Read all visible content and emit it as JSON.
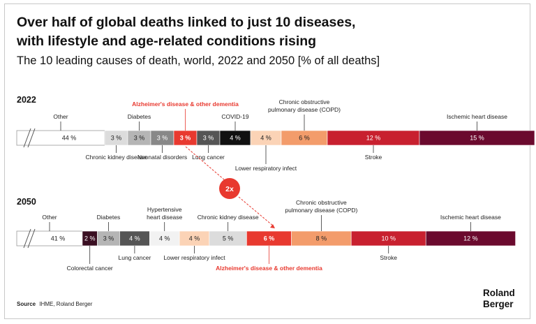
{
  "title_line1": "Over half of global deaths linked to just 10 diseases,",
  "title_line2": "with lifestyle and age-related conditions rising",
  "subtitle": "The 10 leading causes of death, world, 2022 and 2050 [% of all deaths]",
  "source_label": "Source",
  "source_text": "IHME, Roland Berger",
  "logo_line1": "Roland",
  "logo_line2": "Berger",
  "badge": "2x",
  "colors": {
    "accent": "#e8392f",
    "maroon": "#6b0a2e",
    "crimson": "#c8202f",
    "orange": "#f39c6b",
    "peach": "#fbd3b6",
    "gray_dark": "#555555",
    "gray": "#888888",
    "gray_light": "#b5b5b5",
    "gray_pale": "#dcdcdc",
    "black": "#111111"
  },
  "chart_data": [
    {
      "type": "bar",
      "stacked": true,
      "orientation": "horizontal",
      "year": "2022",
      "unit": "%",
      "segments": [
        {
          "name": "Other",
          "value": 44,
          "label": "44 %",
          "color": "#ffffff"
        },
        {
          "name": "Chronic kidney disease",
          "value": 3,
          "label": "3 %",
          "color": "#dcdcdc"
        },
        {
          "name": "Diabetes",
          "value": 3,
          "label": "3 %",
          "color": "#b5b5b5"
        },
        {
          "name": "Neonatal disorders",
          "value": 3,
          "label": "3 %",
          "color": "#888888"
        },
        {
          "name": "Alzheimer's disease & other dementia",
          "value": 3,
          "label": "3 %",
          "color": "#e8392f",
          "highlight": true
        },
        {
          "name": "Lung cancer",
          "value": 3,
          "label": "3 %",
          "color": "#555555"
        },
        {
          "name": "COVID-19",
          "value": 4,
          "label": "4 %",
          "color": "#111111"
        },
        {
          "name": "Lower respiratory infect",
          "value": 4,
          "label": "4 %",
          "color": "#fbd3b6"
        },
        {
          "name": "Chronic obstructive pulmonary disease (COPD)",
          "value": 6,
          "label": "6 %",
          "color": "#f39c6b"
        },
        {
          "name": "Stroke",
          "value": 12,
          "label": "12 %",
          "color": "#c8202f"
        },
        {
          "name": "Ischemic heart disease",
          "value": 15,
          "label": "15 %",
          "color": "#6b0a2e"
        }
      ]
    },
    {
      "type": "bar",
      "stacked": true,
      "orientation": "horizontal",
      "year": "2050",
      "unit": "%",
      "segments": [
        {
          "name": "Other",
          "value": 41,
          "label": "41 %",
          "color": "#ffffff"
        },
        {
          "name": "Colorectal cancer",
          "value": 2,
          "label": "2 %",
          "color": "#3a0f22"
        },
        {
          "name": "Diabetes",
          "value": 3,
          "label": "3 %",
          "color": "#b5b5b5"
        },
        {
          "name": "Lung cancer",
          "value": 4,
          "label": "4 %",
          "color": "#555555"
        },
        {
          "name": "Hypertensive heart disease",
          "value": 4,
          "label": "4 %",
          "color": "#f2f2f2"
        },
        {
          "name": "Lower respiratory infect",
          "value": 4,
          "label": "4 %",
          "color": "#fbd3b6"
        },
        {
          "name": "Chronic kidney disease",
          "value": 5,
          "label": "5 %",
          "color": "#dcdcdc"
        },
        {
          "name": "Alzheimer's disease & other dementia",
          "value": 6,
          "label": "6 %",
          "color": "#e8392f",
          "highlight": true
        },
        {
          "name": "Chronic obstructive pulmonary disease (COPD)",
          "value": 8,
          "label": "8 %",
          "color": "#f39c6b"
        },
        {
          "name": "Stroke",
          "value": 10,
          "label": "10 %",
          "color": "#c8202f"
        },
        {
          "name": "Ischemic heart disease",
          "value": 12,
          "label": "12 %",
          "color": "#6b0a2e"
        }
      ]
    }
  ]
}
